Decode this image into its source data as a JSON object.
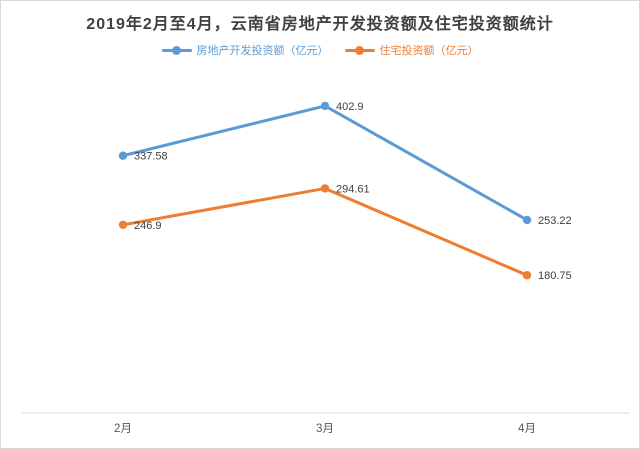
{
  "chart_data": {
    "type": "line",
    "title": "2019年2月至4月，云南省房地产开发投资额及住宅投资额统计",
    "categories": [
      "2月",
      "3月",
      "4月"
    ],
    "series": [
      {
        "name": "房地产开发投资额（亿元）",
        "color": "#5B9BD5",
        "values": [
          337.58,
          402.9,
          253.22
        ]
      },
      {
        "name": "住宅投资额（亿元）",
        "color": "#ED7D31",
        "values": [
          246.9,
          294.61,
          180.75
        ]
      }
    ],
    "ylim": [
      0,
      450
    ],
    "xlabel": "",
    "ylabel": "",
    "grid": false,
    "data_labels": true,
    "legend_position": "top-center",
    "colors": {
      "title_text": "#404040",
      "data_label_text": "#404040",
      "axis_tick_text": "#595959",
      "axis_line": "#D9D9D9",
      "frame_border": "#D8D8D8",
      "background": "#FFFFFF"
    }
  }
}
